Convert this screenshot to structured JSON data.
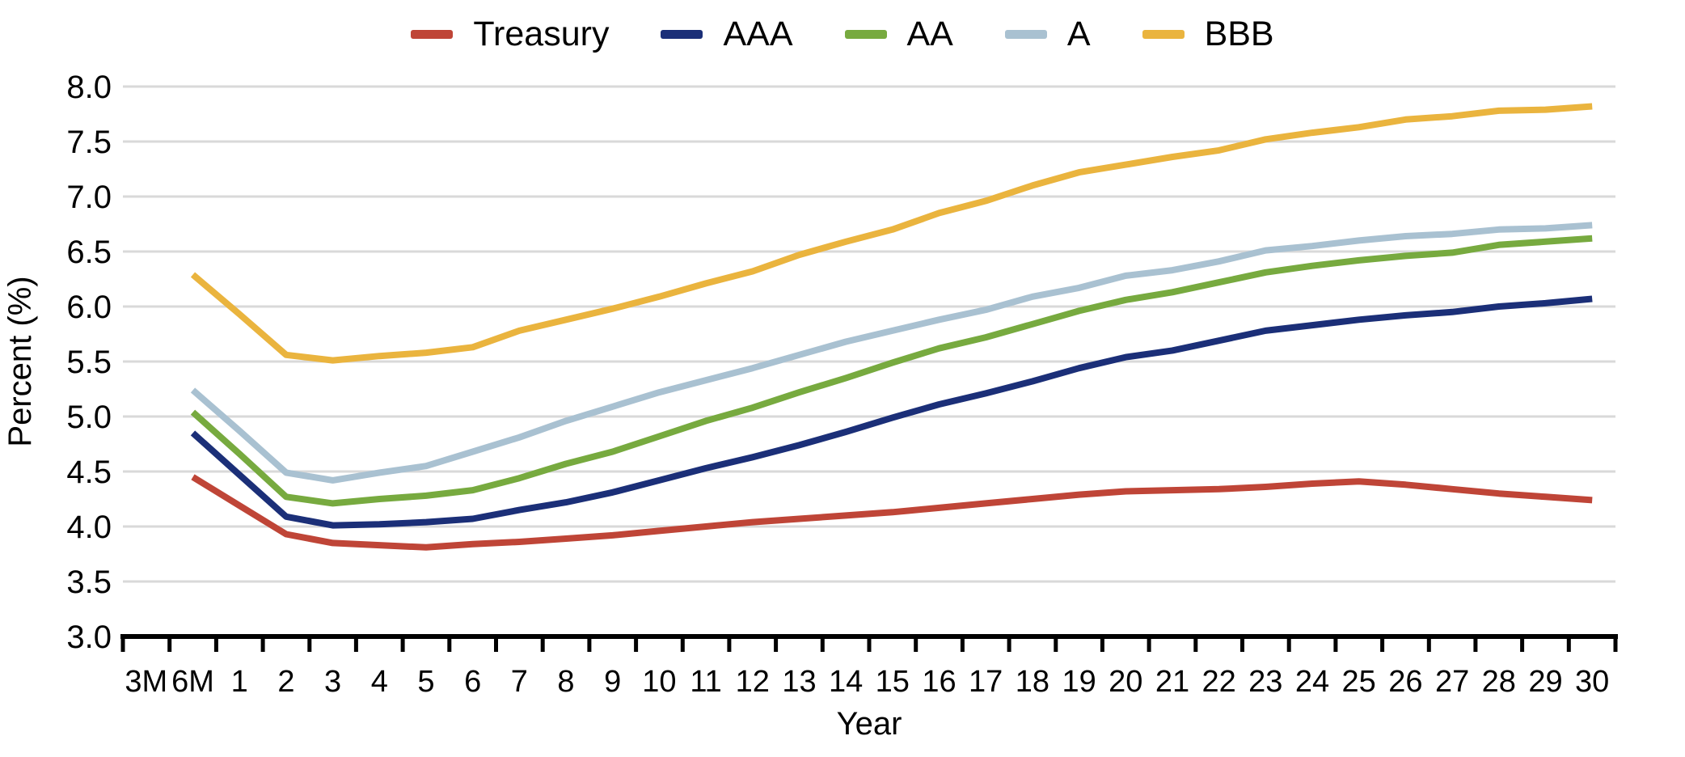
{
  "chart_data": {
    "type": "line",
    "title": "",
    "xlabel": "Year",
    "ylabel": "Percent (%)",
    "ylim": [
      3.0,
      8.0
    ],
    "yticks": [
      3.0,
      3.5,
      4.0,
      4.5,
      5.0,
      5.5,
      6.0,
      6.5,
      7.0,
      7.5,
      8.0
    ],
    "grid": "horizontal",
    "gridline_color": "#d9d9d9",
    "axis_color": "#000000",
    "legend_position": "top-center",
    "categories": [
      "3M",
      "6M",
      "1",
      "2",
      "3",
      "4",
      "5",
      "6",
      "7",
      "8",
      "9",
      "10",
      "11",
      "12",
      "13",
      "14",
      "15",
      "16",
      "17",
      "18",
      "19",
      "20",
      "21",
      "22",
      "23",
      "24",
      "25",
      "26",
      "27",
      "28",
      "29",
      "30"
    ],
    "series": [
      {
        "name": "Treasury",
        "color": "#bf4537",
        "values": [
          null,
          4.45,
          4.19,
          3.93,
          3.85,
          3.83,
          3.81,
          3.84,
          3.86,
          3.89,
          3.92,
          3.96,
          4.0,
          4.04,
          4.07,
          4.1,
          4.13,
          4.17,
          4.21,
          4.25,
          4.29,
          4.32,
          4.33,
          4.34,
          4.36,
          4.39,
          4.41,
          4.38,
          4.34,
          4.3,
          4.27,
          4.24
        ]
      },
      {
        "name": "AAA",
        "color": "#1b2f78",
        "values": [
          null,
          4.85,
          4.47,
          4.09,
          4.01,
          4.02,
          4.04,
          4.07,
          4.15,
          4.22,
          4.31,
          4.42,
          4.53,
          4.63,
          4.74,
          4.86,
          4.99,
          5.11,
          5.21,
          5.32,
          5.44,
          5.54,
          5.6,
          5.69,
          5.78,
          5.83,
          5.88,
          5.92,
          5.95,
          6.0,
          6.03,
          6.07
        ]
      },
      {
        "name": "AA",
        "color": "#77aa3f",
        "values": [
          null,
          5.04,
          4.66,
          4.27,
          4.21,
          4.25,
          4.28,
          4.33,
          4.44,
          4.57,
          4.68,
          4.82,
          4.96,
          5.08,
          5.22,
          5.35,
          5.49,
          5.62,
          5.72,
          5.84,
          5.96,
          6.06,
          6.13,
          6.22,
          6.31,
          6.37,
          6.42,
          6.46,
          6.49,
          6.56,
          6.59,
          6.62
        ]
      },
      {
        "name": "A",
        "color": "#a9c1d1",
        "values": [
          null,
          5.24,
          4.87,
          4.49,
          4.42,
          4.49,
          4.55,
          4.68,
          4.81,
          4.96,
          5.09,
          5.22,
          5.33,
          5.44,
          5.56,
          5.68,
          5.78,
          5.88,
          5.97,
          6.09,
          6.17,
          6.28,
          6.33,
          6.41,
          6.51,
          6.55,
          6.6,
          6.64,
          6.66,
          6.7,
          6.71,
          6.74
        ]
      },
      {
        "name": "BBB",
        "color": "#eab43e",
        "values": [
          null,
          6.29,
          5.93,
          5.56,
          5.51,
          5.55,
          5.58,
          5.63,
          5.78,
          5.88,
          5.98,
          6.09,
          6.21,
          6.32,
          6.47,
          6.59,
          6.7,
          6.85,
          6.96,
          7.1,
          7.22,
          7.29,
          7.36,
          7.42,
          7.52,
          7.58,
          7.63,
          7.7,
          7.73,
          7.78,
          7.79,
          7.82
        ]
      }
    ]
  }
}
